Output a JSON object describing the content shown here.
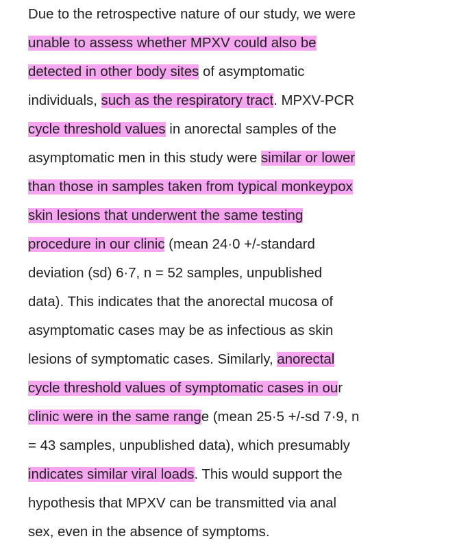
{
  "document": {
    "highlight_color": "#f6a6f1",
    "text_color": "#222222",
    "lines": [
      {
        "segments": [
          {
            "text": "Due to the retrospective nature of our study, we were",
            "highlight": false
          }
        ]
      },
      {
        "segments": [
          {
            "text": "unable to assess whether MPXV could also be",
            "highlight": true
          }
        ]
      },
      {
        "segments": [
          {
            "text": "detected in other body sites",
            "highlight": true
          },
          {
            "text": " of asymptomatic",
            "highlight": false
          }
        ]
      },
      {
        "segments": [
          {
            "text": "individuals, ",
            "highlight": false
          },
          {
            "text": "such as the respiratory tract",
            "highlight": true
          },
          {
            "text": ". MPXV-PCR",
            "highlight": false
          }
        ]
      },
      {
        "segments": [
          {
            "text": "cycle threshold values",
            "highlight": true
          },
          {
            "text": " in anorectal samples of the",
            "highlight": false
          }
        ]
      },
      {
        "segments": [
          {
            "text": "asymptomatic men in this study were ",
            "highlight": false
          },
          {
            "text": "similar or lower",
            "highlight": true
          }
        ]
      },
      {
        "segments": [
          {
            "text": "than those in samples taken from typical monkeypox",
            "highlight": true
          }
        ]
      },
      {
        "segments": [
          {
            "text": "skin lesions that underwent the same testing",
            "highlight": true
          }
        ]
      },
      {
        "segments": [
          {
            "text": "procedure in our clinic",
            "highlight": true
          },
          {
            "text": " (mean 24·0 +/-standard",
            "highlight": false
          }
        ]
      },
      {
        "segments": [
          {
            "text": "deviation (sd) 6·7, n = 52 samples, unpublished",
            "highlight": false
          }
        ]
      },
      {
        "segments": [
          {
            "text": "data). This indicates that the anorectal mucosa of",
            "highlight": false
          }
        ]
      },
      {
        "segments": [
          {
            "text": "asymptomatic cases may be as infectious as skin",
            "highlight": false
          }
        ]
      },
      {
        "segments": [
          {
            "text": "lesions of symptomatic cases. Similarly, ",
            "highlight": false
          },
          {
            "text": "anorectal",
            "highlight": true
          }
        ]
      },
      {
        "segments": [
          {
            "text": "cycle threshold values of symptomatic cases in ou",
            "highlight": true
          },
          {
            "text": "r",
            "highlight": false
          }
        ]
      },
      {
        "segments": [
          {
            "text": "clinic were in the same rang",
            "highlight": true
          },
          {
            "text": "e (mean 25·5 +/-sd 7·9, n",
            "highlight": false
          }
        ]
      },
      {
        "segments": [
          {
            "text": "= 43 samples, unpublished data), which presumably",
            "highlight": false
          }
        ]
      },
      {
        "segments": [
          {
            "text": "indicates similar viral loads",
            "highlight": true
          },
          {
            "text": ". This would support the",
            "highlight": false
          }
        ]
      },
      {
        "segments": [
          {
            "text": "hypothesis that MPXV can be transmitted via anal",
            "highlight": false
          }
        ]
      },
      {
        "segments": [
          {
            "text": "sex, even in the absence of symptoms.",
            "highlight": false
          }
        ]
      }
    ]
  }
}
